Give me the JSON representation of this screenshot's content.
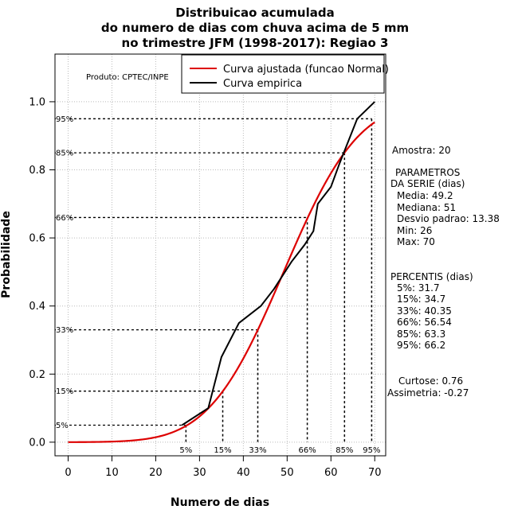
{
  "chart_title": {
    "line1": "Distribuicao acumulada",
    "line2": "do numero de dias com chuva acima de 5 mm",
    "line3": "no trimestre JFM (1998-2017): Regiao 3"
  },
  "product_label": "Produto: CPTEC/INPE",
  "stats": {
    "sample": "Amostra: 20",
    "params_header1": "PARAMETROS",
    "params_header2": "DA SERIE (dias)",
    "media": "Media: 49.2",
    "mediana": "Mediana: 51",
    "desvio": "Desvio padrao: 13.38",
    "min": "Min: 26",
    "max": "Max: 70",
    "percentis_header": "PERCENTIS (dias)",
    "p5": "5%: 31.7",
    "p15": "15%: 34.7",
    "p33": "33%: 40.35",
    "p66": "66%: 56.54",
    "p85": "85%: 63.3",
    "p95": "95%: 66.2",
    "curtose": "Curtose: 0.76",
    "assimetria": "Assimetria: -0.27"
  },
  "colors": {
    "fitted": "#dd0000",
    "empirical": "#000000",
    "grid": "#bbbbbb"
  },
  "chart_data": {
    "type": "line",
    "xlabel": "Numero de dias",
    "ylabel": "Probabilidade",
    "xlim": [
      -3,
      72.5
    ],
    "ylim": [
      -0.04,
      1.14
    ],
    "x_ticks": [
      0,
      10,
      20,
      30,
      40,
      50,
      60,
      70
    ],
    "y_ticks": [
      0.0,
      0.2,
      0.4,
      0.6,
      0.8,
      1.0
    ],
    "y_tick_labels": [
      "0.0",
      "0.2",
      "0.4",
      "0.6",
      "0.8",
      "1.0"
    ],
    "grid": true,
    "legend_position": "top-right",
    "fitted": {
      "name": "Curva ajustada (funcao Normal)",
      "mean": 49.2,
      "sd": 13.38,
      "x_range": [
        0,
        70
      ]
    },
    "empirical": {
      "name": "Curva empirica",
      "x": [
        26,
        32,
        35,
        39,
        44,
        47,
        51,
        54,
        56,
        57,
        60,
        62,
        66,
        70
      ],
      "y": [
        0.05,
        0.1,
        0.25,
        0.35,
        0.4,
        0.45,
        0.53,
        0.58,
        0.62,
        0.7,
        0.75,
        0.82,
        0.95,
        1.0
      ]
    },
    "percentile_markers": [
      {
        "label": "5%",
        "p": 0.05,
        "x": 26.9
      },
      {
        "label": "15%",
        "p": 0.15,
        "x": 35.3
      },
      {
        "label": "33%",
        "p": 0.33,
        "x": 43.3
      },
      {
        "label": "66%",
        "p": 0.66,
        "x": 54.6
      },
      {
        "label": "85%",
        "p": 0.85,
        "x": 63.1
      },
      {
        "label": "95%",
        "p": 0.95,
        "x": 69.3
      }
    ]
  }
}
